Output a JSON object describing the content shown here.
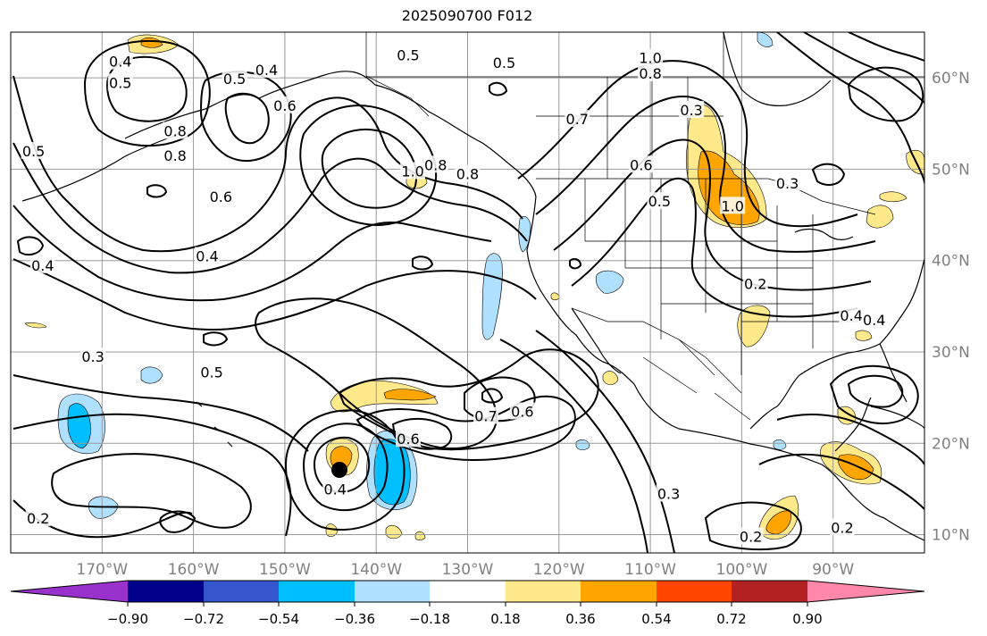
{
  "title": "2025090700 F012",
  "map": {
    "lon_labels": [
      "170°W",
      "160°W",
      "150°W",
      "140°W",
      "130°W",
      "120°W",
      "110°W",
      "100°W",
      "90°W"
    ],
    "lat_labels": [
      "60°N",
      "50°N",
      "40°N",
      "30°N",
      "20°N",
      "10°N"
    ],
    "contour_labels": [
      {
        "text": "0.5",
        "lon": -136.5,
        "lat": 62.5
      },
      {
        "text": "0.5",
        "lon": -126.0,
        "lat": 61.7
      },
      {
        "text": "1.0",
        "lon": -110.0,
        "lat": 62.2
      },
      {
        "text": "0.8",
        "lon": -110.0,
        "lat": 60.5
      },
      {
        "text": "0.4",
        "lon": -168.0,
        "lat": 61.8
      },
      {
        "text": "0.5",
        "lon": -168.0,
        "lat": 59.5
      },
      {
        "text": "0.4",
        "lon": -152.0,
        "lat": 60.9
      },
      {
        "text": "0.5",
        "lon": -155.5,
        "lat": 59.9
      },
      {
        "text": "0.6",
        "lon": -150.0,
        "lat": 57.0
      },
      {
        "text": "0.8",
        "lon": -162.0,
        "lat": 54.2
      },
      {
        "text": "0.5",
        "lon": -177.5,
        "lat": 52.0
      },
      {
        "text": "0.8",
        "lon": -162.0,
        "lat": 51.5
      },
      {
        "text": "1.0",
        "lon": -136.0,
        "lat": 49.8
      },
      {
        "text": "0.8",
        "lon": -133.5,
        "lat": 50.5
      },
      {
        "text": "0.8",
        "lon": -130.0,
        "lat": 49.5
      },
      {
        "text": "0.7",
        "lon": -118.0,
        "lat": 55.5
      },
      {
        "text": "0.3",
        "lon": -105.5,
        "lat": 56.5
      },
      {
        "text": "0.6",
        "lon": -111.0,
        "lat": 50.5
      },
      {
        "text": "0.5",
        "lon": -109.0,
        "lat": 46.5
      },
      {
        "text": "1.0",
        "lon": -101.0,
        "lat": 46.0
      },
      {
        "text": "0.3",
        "lon": -95.0,
        "lat": 48.5
      },
      {
        "text": "0.6",
        "lon": -157.0,
        "lat": 47.0
      },
      {
        "text": "0.4",
        "lon": -158.5,
        "lat": 40.5
      },
      {
        "text": "0.4",
        "lon": -176.5,
        "lat": 39.5
      },
      {
        "text": "0.3",
        "lon": -171.0,
        "lat": 29.5
      },
      {
        "text": "0.5",
        "lon": -158.0,
        "lat": 27.8
      },
      {
        "text": "0.2",
        "lon": -98.5,
        "lat": 37.5
      },
      {
        "text": "0.4",
        "lon": -88.0,
        "lat": 34.0
      },
      {
        "text": "0.4",
        "lon": -85.5,
        "lat": 33.5
      },
      {
        "text": "0.7",
        "lon": -128.0,
        "lat": 23.0
      },
      {
        "text": "0.6",
        "lon": -124.0,
        "lat": 23.5
      },
      {
        "text": "0.6",
        "lon": -136.5,
        "lat": 20.5
      },
      {
        "text": "0.3",
        "lon": -108.0,
        "lat": 14.5
      },
      {
        "text": "0.4",
        "lon": -144.5,
        "lat": 15.0
      },
      {
        "text": "0.2",
        "lon": -99.0,
        "lat": 9.8
      },
      {
        "text": "0.2",
        "lon": -177.0,
        "lat": 11.8
      },
      {
        "text": "0.2",
        "lon": -89.0,
        "lat": 10.8
      }
    ]
  },
  "colorbar": {
    "tick_labels": [
      "−0.90",
      "−0.72",
      "−0.54",
      "−0.36",
      "−0.18",
      "0.18",
      "0.36",
      "0.54",
      "0.72",
      "0.90"
    ],
    "colors": [
      "#9932cc",
      "#00008b",
      "#3555cc",
      "#00bfff",
      "#b0e0ff",
      "#ffffff",
      "#ffe98a",
      "#ffa500",
      "#ff4500",
      "#b22222",
      "#ff88aa",
      "#ff88aa"
    ]
  }
}
